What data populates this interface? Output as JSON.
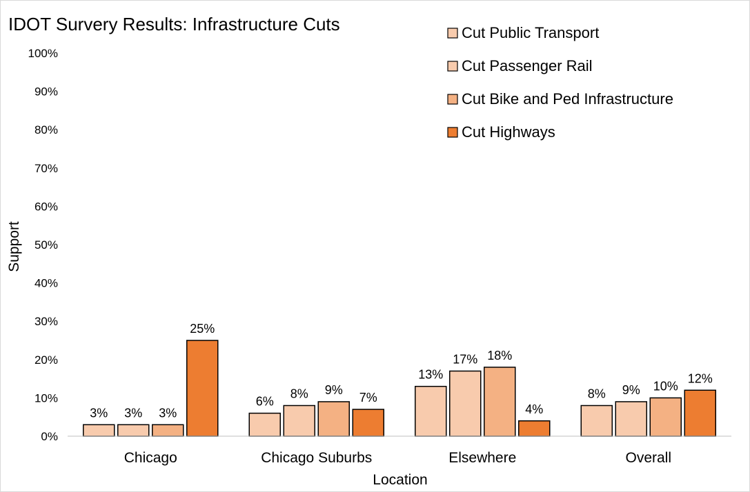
{
  "chart_data": {
    "type": "bar",
    "title": "IDOT Survery Results: Infrastructure Cuts",
    "xlabel": "Location",
    "ylabel": "Support",
    "categories": [
      "Chicago",
      "Chicago Suburbs",
      "Elsewhere",
      "Overall"
    ],
    "series": [
      {
        "name": "Cut Public Transport",
        "values": [
          3,
          6,
          13,
          8
        ],
        "color": "#F8CBAD"
      },
      {
        "name": "Cut Passenger Rail",
        "values": [
          3,
          8,
          17,
          9
        ],
        "color": "#F8CBAD"
      },
      {
        "name": "Cut Bike and Ped Infrastructure",
        "values": [
          3,
          9,
          18,
          10
        ],
        "color": "#F4B183"
      },
      {
        "name": "Cut Highways",
        "values": [
          25,
          7,
          4,
          12
        ],
        "color": "#ED7D31"
      }
    ],
    "data_labels": [
      [
        "3%",
        "6%",
        "13%",
        "8%"
      ],
      [
        "3%",
        "8%",
        "17%",
        "9%"
      ],
      [
        "3%",
        "9%",
        "18%",
        "10%"
      ],
      [
        "25%",
        "7%",
        "4%",
        "12%"
      ]
    ],
    "y_ticks": [
      "0%",
      "10%",
      "20%",
      "30%",
      "40%",
      "50%",
      "60%",
      "70%",
      "80%",
      "90%",
      "100%"
    ],
    "ylim": [
      0,
      100
    ],
    "grid": false,
    "legend_position": "top-right"
  }
}
